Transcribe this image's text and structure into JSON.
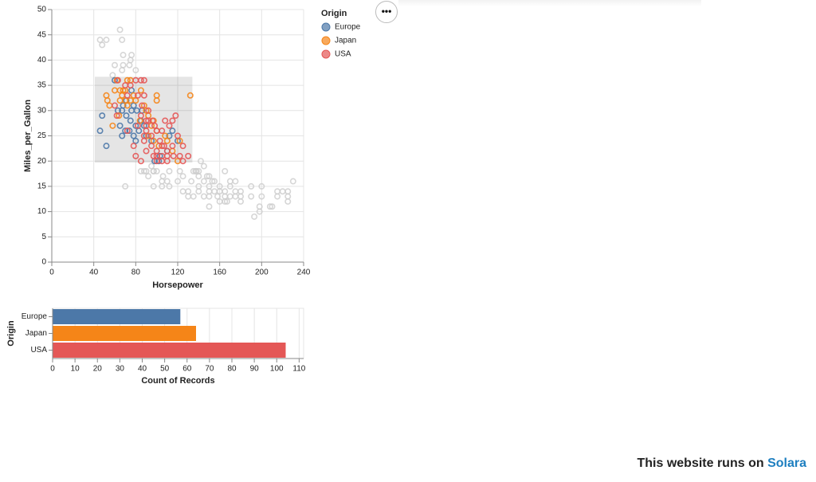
{
  "chart_data": [
    {
      "type": "scatter",
      "x_label": "Horsepower",
      "y_label": "Miles_per_Gallon",
      "xlim": [
        0,
        240
      ],
      "xticks": [
        0,
        40,
        80,
        120,
        160,
        200,
        240
      ],
      "ylim": [
        0,
        50
      ],
      "yticks": [
        0,
        5,
        10,
        15,
        20,
        25,
        30,
        35,
        40,
        45,
        50
      ],
      "grid": true,
      "legend_title": "Origin",
      "legend": "top-right",
      "selection": {
        "x": [
          41,
          134
        ],
        "y": [
          19.7,
          36.7
        ]
      },
      "unselected_color": "#cccccc",
      "series": [
        {
          "name": "Europe",
          "color": "#4c78a8",
          "x": [
            46,
            48,
            52,
            60,
            65,
            67,
            67,
            70,
            71,
            75,
            76,
            78,
            80,
            83,
            86,
            88,
            90,
            95,
            98,
            102,
            103,
            110,
            112,
            115,
            120,
            71,
            74,
            78,
            80,
            85,
            68,
            63,
            76,
            81,
            46,
            48,
            52,
            67,
            74,
            133,
            125,
            106,
            97,
            76
          ],
          "values": [
            26,
            29,
            23,
            36,
            27,
            30,
            25,
            26,
            29,
            28,
            30,
            31,
            27,
            26,
            30,
            27,
            25,
            24,
            20,
            20,
            21,
            22,
            25,
            26,
            24,
            32,
            26,
            25,
            24,
            28,
            31,
            30,
            34,
            30,
            44,
            43,
            44,
            38,
            39,
            16,
            17,
            17,
            18,
            41
          ]
        },
        {
          "name": "Japan",
          "color": "#f58518",
          "x": [
            52,
            53,
            55,
            60,
            62,
            65,
            65,
            67,
            68,
            70,
            70,
            72,
            75,
            75,
            78,
            80,
            84,
            88,
            90,
            92,
            95,
            97,
            100,
            100,
            100,
            108,
            110,
            115,
            122,
            132,
            120,
            85,
            72,
            64,
            58,
            92,
            97,
            102,
            65,
            68,
            60,
            67,
            58,
            68,
            75,
            80,
            97,
            122
          ],
          "values": [
            33,
            32,
            31,
            34,
            36,
            32,
            34,
            33,
            34,
            32,
            34,
            31,
            36,
            32,
            33,
            32,
            28,
            31,
            30,
            29,
            27,
            28,
            32,
            33,
            26,
            25,
            24,
            22,
            24,
            33,
            20,
            34,
            36,
            29,
            27,
            25,
            24,
            23,
            46,
            39,
            39,
            44,
            37,
            41,
            40,
            38,
            18,
            18
          ]
        },
        {
          "name": "USA",
          "color": "#e45756",
          "x": [
            60,
            62,
            63,
            70,
            72,
            75,
            80,
            82,
            85,
            86,
            88,
            88,
            90,
            90,
            90,
            92,
            95,
            95,
            96,
            98,
            100,
            100,
            100,
            103,
            105,
            105,
            105,
            108,
            110,
            110,
            110,
            112,
            115,
            115,
            116,
            118,
            120,
            122,
            125,
            130,
            85,
            88,
            78,
            80,
            85,
            72,
            90,
            97,
            100,
            105,
            107,
            125,
            88,
            92,
            82,
            140,
            140,
            145,
            145,
            150,
            150,
            150,
            150,
            153,
            155,
            158,
            160,
            160,
            165,
            165,
            165,
            167,
            170,
            170,
            175,
            175,
            175,
            180,
            180,
            190,
            190,
            193,
            198,
            198,
            200,
            208,
            210,
            215,
            215,
            220,
            225,
            225,
            230,
            150,
            130,
            135,
            137,
            140,
            142,
            145,
            148,
            140,
            155,
            160,
            130,
            110,
            112,
            105,
            105,
            95,
            100,
            85,
            88,
            90,
            92,
            97,
            70,
            120,
            125,
            138,
            165,
            180,
            200,
            225,
            170,
            135,
            112
          ],
          "values": [
            31,
            29,
            36,
            35,
            33,
            35,
            36,
            33,
            36,
            31,
            36,
            33,
            28,
            27,
            26,
            28,
            25,
            23,
            28,
            27,
            26,
            22,
            20,
            24,
            26,
            23,
            21,
            28,
            22,
            21,
            20,
            27,
            28,
            23,
            21,
            29,
            25,
            21,
            23,
            21,
            29,
            25,
            23,
            21,
            20,
            26,
            22,
            21,
            21,
            20,
            23,
            20,
            24,
            30,
            27,
            17,
            14,
            16,
            13,
            15,
            14,
            13,
            17,
            16,
            14,
            13,
            15,
            14,
            12,
            13,
            18,
            12,
            15,
            13,
            14,
            13,
            16,
            12,
            14,
            13,
            15,
            9,
            11,
            10,
            15,
            11,
            11,
            13,
            14,
            14,
            14,
            12,
            16,
            11,
            14,
            18,
            18,
            18,
            20,
            19,
            17,
            15,
            16,
            12,
            13,
            16,
            15,
            16,
            15,
            19,
            18,
            18,
            18,
            18,
            17,
            15,
            15,
            16,
            14,
            18,
            14,
            13,
            13,
            13,
            16,
            13,
            18
          ]
        }
      ]
    },
    {
      "type": "bar",
      "orientation": "horizontal",
      "x_label": "Count of Records",
      "y_label": "Origin",
      "categories": [
        "Europe",
        "Japan",
        "USA"
      ],
      "values": [
        57,
        64,
        104
      ],
      "colors": [
        "#4c78a8",
        "#f58518",
        "#e45756"
      ],
      "xlim": [
        0,
        112
      ],
      "xticks": [
        0,
        10,
        20,
        30,
        40,
        50,
        60,
        70,
        80,
        90,
        100,
        110
      ],
      "grid": true
    }
  ],
  "menu_button": "•••",
  "footer": {
    "text": "This website runs on",
    "link": "Solara"
  }
}
